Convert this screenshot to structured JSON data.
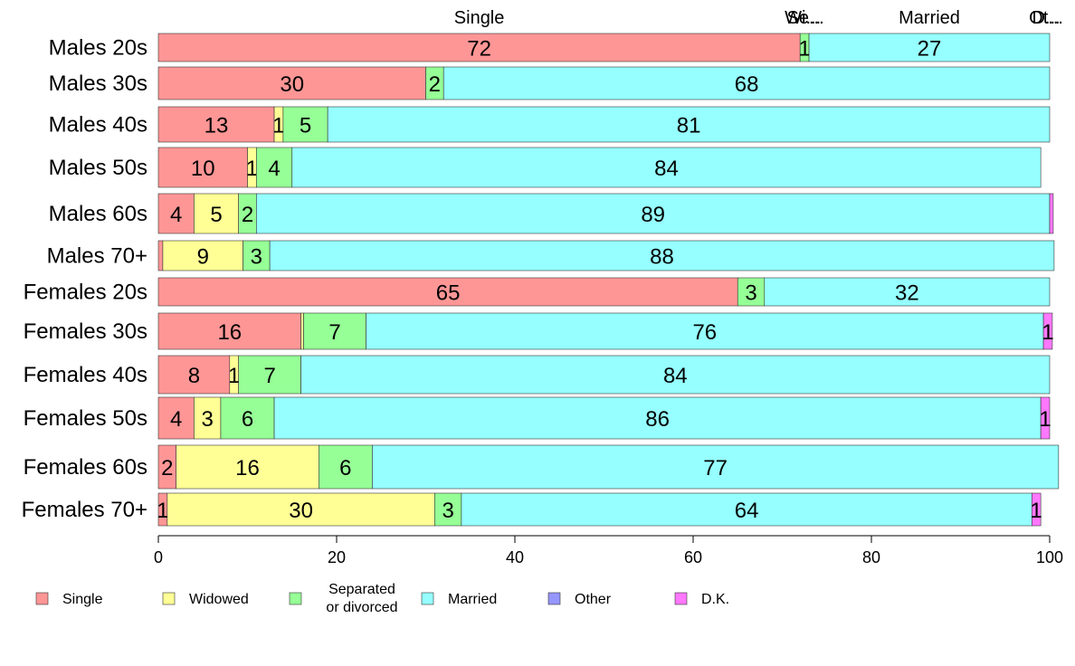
{
  "chart_data": {
    "type": "bar",
    "orientation": "horizontal",
    "stacked": true,
    "categories": [
      "Males 20s",
      "Males 30s",
      "Males 40s",
      "Males 50s",
      "Males 60s",
      "Males 70+",
      "Females 20s",
      "Females 30s",
      "Females 40s",
      "Females 50s",
      "Females 60s",
      "Females 70+"
    ],
    "series": [
      {
        "name": "Single",
        "color": "#ff9696",
        "values": [
          72,
          30,
          13,
          10,
          4,
          0.5,
          65,
          16,
          8,
          4,
          2,
          1
        ]
      },
      {
        "name": "Widowed",
        "color": "#ffff96",
        "values": [
          0,
          0,
          1,
          1,
          5,
          9,
          0,
          0.3,
          1,
          3,
          16,
          30
        ]
      },
      {
        "name": "Separated or divorced",
        "color": "#96ff96",
        "values": [
          1,
          2,
          5,
          4,
          2,
          3,
          3,
          7,
          7,
          6,
          6,
          3
        ]
      },
      {
        "name": "Married",
        "color": "#96ffff",
        "values": [
          27,
          68,
          81,
          84,
          89,
          88,
          32,
          76,
          84,
          86,
          77,
          64
        ]
      },
      {
        "name": "Other",
        "color": "#9696ff",
        "values": [
          0,
          0,
          0,
          0,
          0,
          0,
          0,
          0,
          0,
          0,
          0,
          0
        ]
      },
      {
        "name": "D.K.",
        "color": "#ff78ff",
        "values": [
          0,
          0,
          0,
          0,
          0.4,
          0,
          0,
          1,
          0,
          1,
          0,
          1
        ]
      }
    ],
    "value_labels": [
      [
        "72",
        "",
        "1",
        "27",
        "",
        ""
      ],
      [
        "30",
        "",
        "2",
        "68",
        "",
        ""
      ],
      [
        "13",
        "1",
        "5",
        "81",
        "",
        ""
      ],
      [
        "10",
        "1",
        "4",
        "84",
        "",
        ""
      ],
      [
        "4",
        "5",
        "2",
        "89",
        "",
        ""
      ],
      [
        "",
        "9",
        "3",
        "88",
        "",
        ""
      ],
      [
        "65",
        "",
        "3",
        "32",
        "",
        ""
      ],
      [
        "16",
        "",
        "7",
        "76",
        "",
        "1"
      ],
      [
        "8",
        "1",
        "7",
        "84",
        "",
        ""
      ],
      [
        "4",
        "3",
        "6",
        "86",
        "",
        "1"
      ],
      [
        "2",
        "16",
        "6",
        "77",
        "",
        ""
      ],
      [
        "1",
        "30",
        "3",
        "64",
        "",
        "1"
      ]
    ],
    "top_labels": [
      {
        "text": "Single",
        "at": 36
      },
      {
        "text": "Wi...",
        "at": 72.3
      },
      {
        "text": "Se...",
        "at": 72.6
      },
      {
        "text": "Married",
        "at": 86.5
      },
      {
        "text": "Ot...",
        "at": 99.6
      },
      {
        "text": "D...",
        "at": 99.6
      }
    ],
    "xlim": [
      0,
      100
    ],
    "xticks": [
      0,
      20,
      40,
      60,
      80,
      100
    ],
    "grid": false,
    "legend_position": "bottom",
    "legend_labels": [
      "Single",
      "Widowed",
      "Separated\nor divorced",
      "Married",
      "Other",
      "D.K."
    ]
  }
}
